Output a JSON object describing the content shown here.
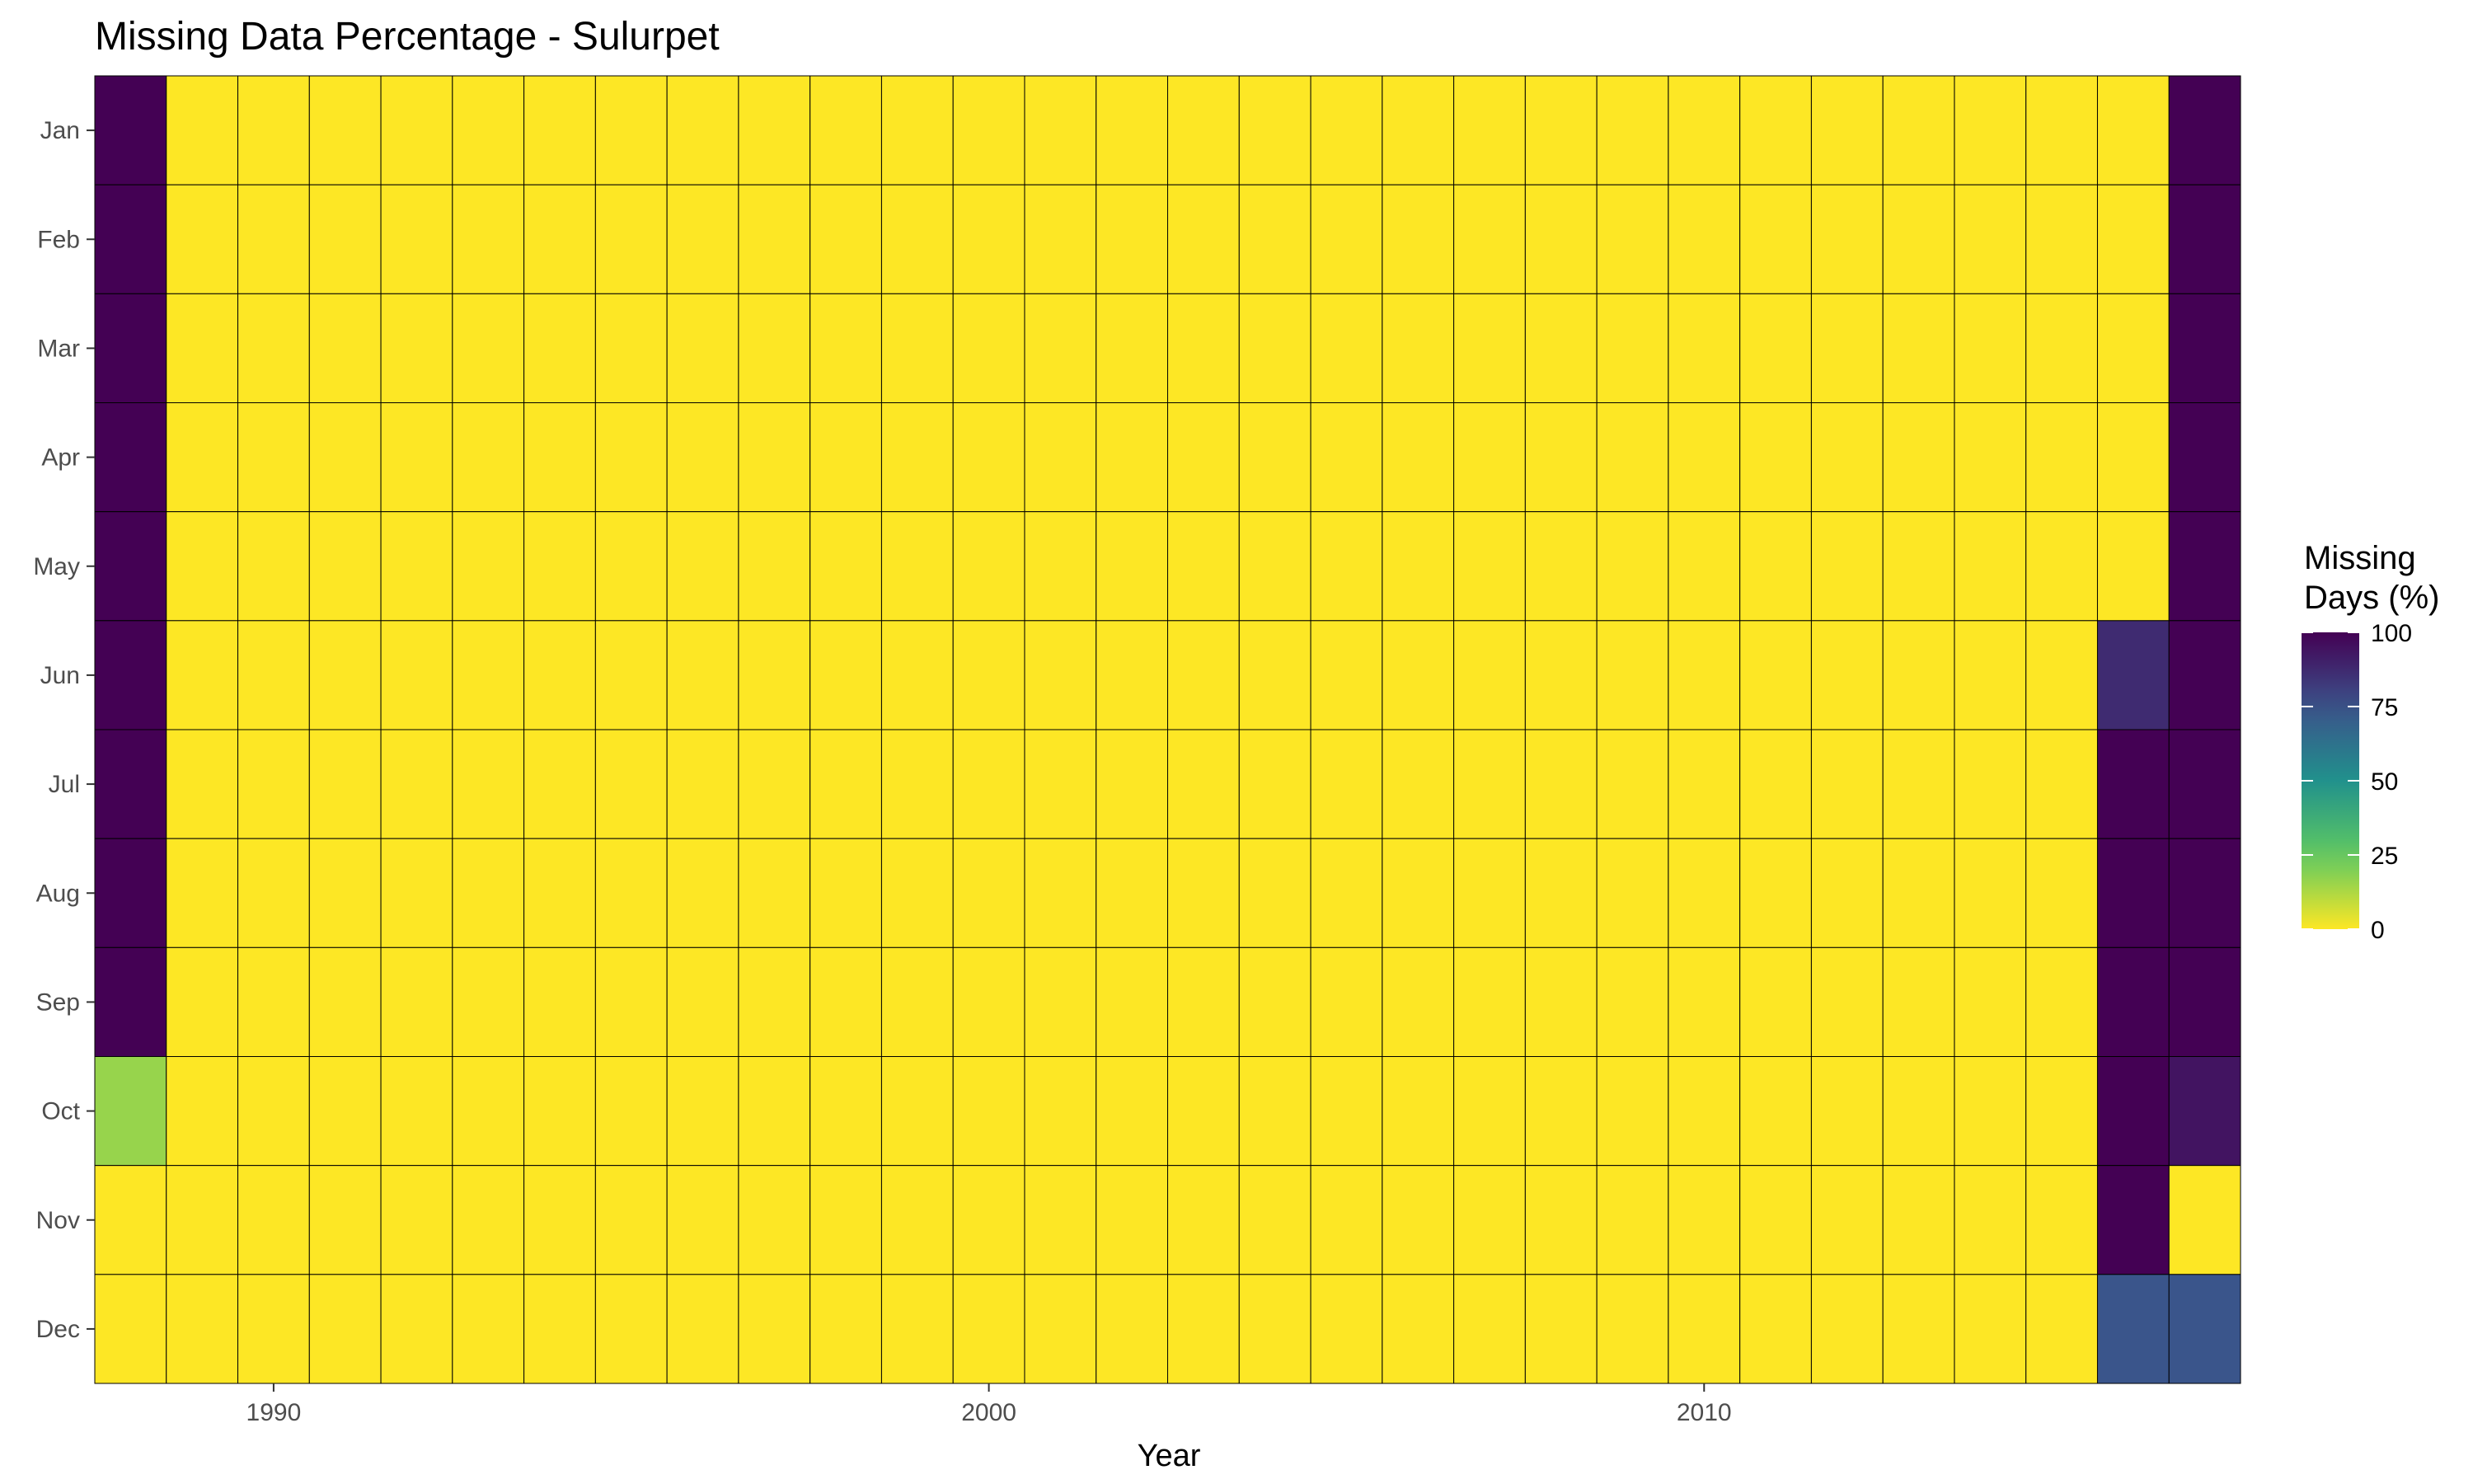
{
  "chart_data": {
    "type": "heatmap",
    "title": "Missing Data Percentage - Sulurpet",
    "xlabel": "Year",
    "ylabel": "",
    "x": [
      1988,
      1989,
      1990,
      1991,
      1992,
      1993,
      1994,
      1995,
      1996,
      1997,
      1998,
      1999,
      2000,
      2001,
      2002,
      2003,
      2004,
      2005,
      2006,
      2007,
      2008,
      2009,
      2010,
      2011,
      2012,
      2013,
      2014,
      2015,
      2016,
      2017
    ],
    "y": [
      "Jan",
      "Feb",
      "Mar",
      "Apr",
      "May",
      "Jun",
      "Jul",
      "Aug",
      "Sep",
      "Oct",
      "Nov",
      "Dec"
    ],
    "x_ticks": [
      1990,
      2000,
      2010
    ],
    "x_tick_labels": [
      "1990",
      "2000",
      "2010"
    ],
    "x_range": [
      1987.5,
      2017.5
    ],
    "default_value": 0,
    "cells": [
      {
        "year": 1988,
        "month": "Jan",
        "value": 100
      },
      {
        "year": 1988,
        "month": "Feb",
        "value": 100
      },
      {
        "year": 1988,
        "month": "Mar",
        "value": 100
      },
      {
        "year": 1988,
        "month": "Apr",
        "value": 100
      },
      {
        "year": 1988,
        "month": "May",
        "value": 100
      },
      {
        "year": 1988,
        "month": "Jun",
        "value": 100
      },
      {
        "year": 1988,
        "month": "Jul",
        "value": 100
      },
      {
        "year": 1988,
        "month": "Aug",
        "value": 100
      },
      {
        "year": 1988,
        "month": "Sep",
        "value": 100
      },
      {
        "year": 1988,
        "month": "Oct",
        "value": 16
      },
      {
        "year": 2016,
        "month": "Jun",
        "value": 87
      },
      {
        "year": 2016,
        "month": "Jul",
        "value": 100
      },
      {
        "year": 2016,
        "month": "Aug",
        "value": 100
      },
      {
        "year": 2016,
        "month": "Sep",
        "value": 100
      },
      {
        "year": 2016,
        "month": "Oct",
        "value": 100
      },
      {
        "year": 2016,
        "month": "Nov",
        "value": 100
      },
      {
        "year": 2016,
        "month": "Dec",
        "value": 74
      },
      {
        "year": 2017,
        "month": "Jan",
        "value": 100
      },
      {
        "year": 2017,
        "month": "Feb",
        "value": 100
      },
      {
        "year": 2017,
        "month": "Mar",
        "value": 100
      },
      {
        "year": 2017,
        "month": "Apr",
        "value": 100
      },
      {
        "year": 2017,
        "month": "May",
        "value": 100
      },
      {
        "year": 2017,
        "month": "Jun",
        "value": 100
      },
      {
        "year": 2017,
        "month": "Jul",
        "value": 100
      },
      {
        "year": 2017,
        "month": "Aug",
        "value": 100
      },
      {
        "year": 2017,
        "month": "Sep",
        "value": 100
      },
      {
        "year": 2017,
        "month": "Oct",
        "value": 94
      },
      {
        "year": 2017,
        "month": "Nov",
        "value": 0
      },
      {
        "year": 2017,
        "month": "Dec",
        "value": 74
      }
    ],
    "legend": {
      "title_line1": "Missing",
      "title_line2": "Days (%)",
      "ticks": [
        100,
        75,
        50,
        25,
        0
      ],
      "tick_labels": [
        "100",
        "75",
        "50",
        "25",
        "0"
      ],
      "range": [
        0,
        100
      ],
      "placement": "right"
    },
    "colormap": "viridis-reversed",
    "colors": {
      "low": "#fde725",
      "high": "#440154",
      "cell_border": "#000000",
      "tick_text": "#4d4d4d"
    },
    "grid": false
  }
}
